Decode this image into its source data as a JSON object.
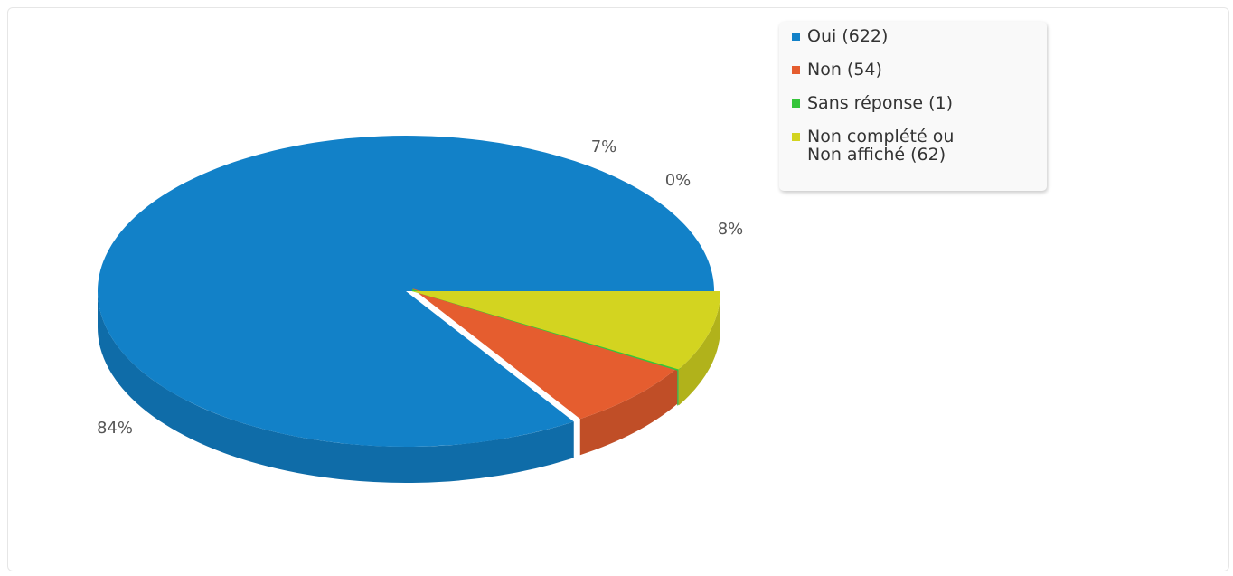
{
  "chart_data": {
    "type": "pie",
    "title": "",
    "categories": [
      "Oui",
      "Non",
      "Sans réponse",
      "Non complété ou\nNon affiché"
    ],
    "values": [
      622,
      54,
      1,
      62
    ],
    "percent_labels": [
      "84%",
      "7%",
      "0%",
      "8%"
    ],
    "legend_labels": [
      "Oui (622)",
      "Non (54)",
      "Sans réponse (1)",
      "Non complété ou\nNon affiché (62)"
    ],
    "colors": [
      "#1281c8",
      "#e55d2f",
      "#35c53a",
      "#d3d420"
    ],
    "legend_position": "top-right",
    "style": "3d"
  }
}
